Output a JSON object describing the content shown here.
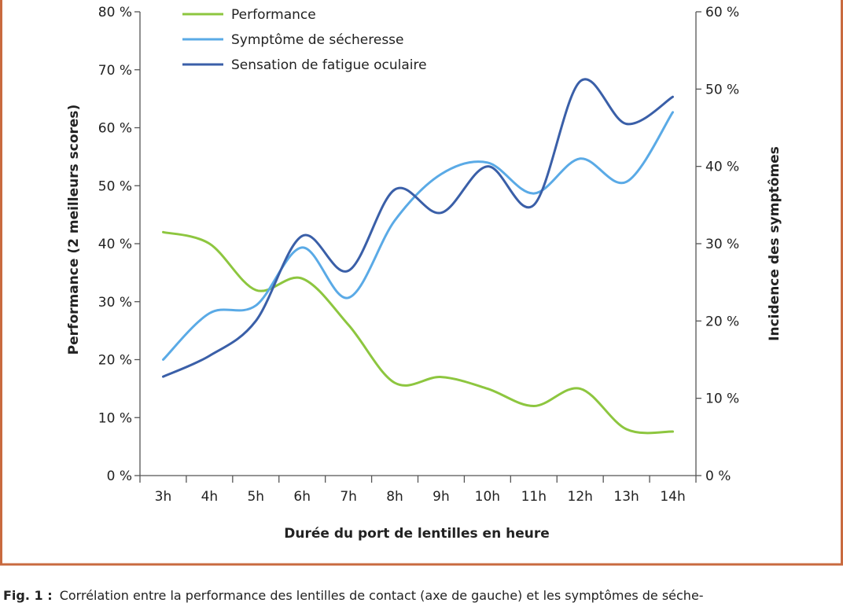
{
  "caption": {
    "label": "Fig. 1 :",
    "text": "Corrélation entre la performance des lentilles de contact (axe de gauche) et les symptômes de séche-"
  },
  "chart_data": {
    "type": "line",
    "title": "",
    "xlabel": "Durée du port de lentilles en heure",
    "ylabel_left": "Performance (2 meilleurs scores)",
    "ylabel_right": "Incidence des symptômes",
    "categories": [
      "3h",
      "4h",
      "5h",
      "6h",
      "7h",
      "8h",
      "9h",
      "10h",
      "11h",
      "12h",
      "13h",
      "14h"
    ],
    "y_left": {
      "min": 0,
      "max": 80,
      "step": 10,
      "tick_labels": [
        "0 %",
        "10 %",
        "20 %",
        "30 %",
        "40 %",
        "50 %",
        "60 %",
        "70 %",
        "80 %"
      ]
    },
    "y_right": {
      "min": 0,
      "max": 60,
      "step": 10,
      "tick_labels": [
        "0 %",
        "10 %",
        "20 %",
        "30 %",
        "40 %",
        "50 %",
        "60 %"
      ]
    },
    "grid": false,
    "legend_position": "top-left",
    "series": [
      {
        "name": "Performance",
        "axis": "left",
        "color": "#8dc63f",
        "values": [
          42,
          40,
          32,
          34,
          26,
          16,
          17,
          15,
          12,
          15,
          8,
          7.6
        ]
      },
      {
        "name": "Symptôme de sécheresse",
        "axis": "right",
        "color": "#5aaae6",
        "values": [
          15,
          21,
          22,
          29.5,
          23,
          33,
          39,
          40.5,
          36.5,
          41,
          38,
          47
        ]
      },
      {
        "name": "Sensation de fatigue oculaire",
        "axis": "right",
        "color": "#3a5fa8",
        "values": [
          12.8,
          15.5,
          20,
          31,
          26.5,
          37,
          34,
          40,
          35,
          51,
          45.5,
          49
        ]
      }
    ]
  },
  "colors": {
    "border": "#c96a3f",
    "axis": "#555555"
  }
}
